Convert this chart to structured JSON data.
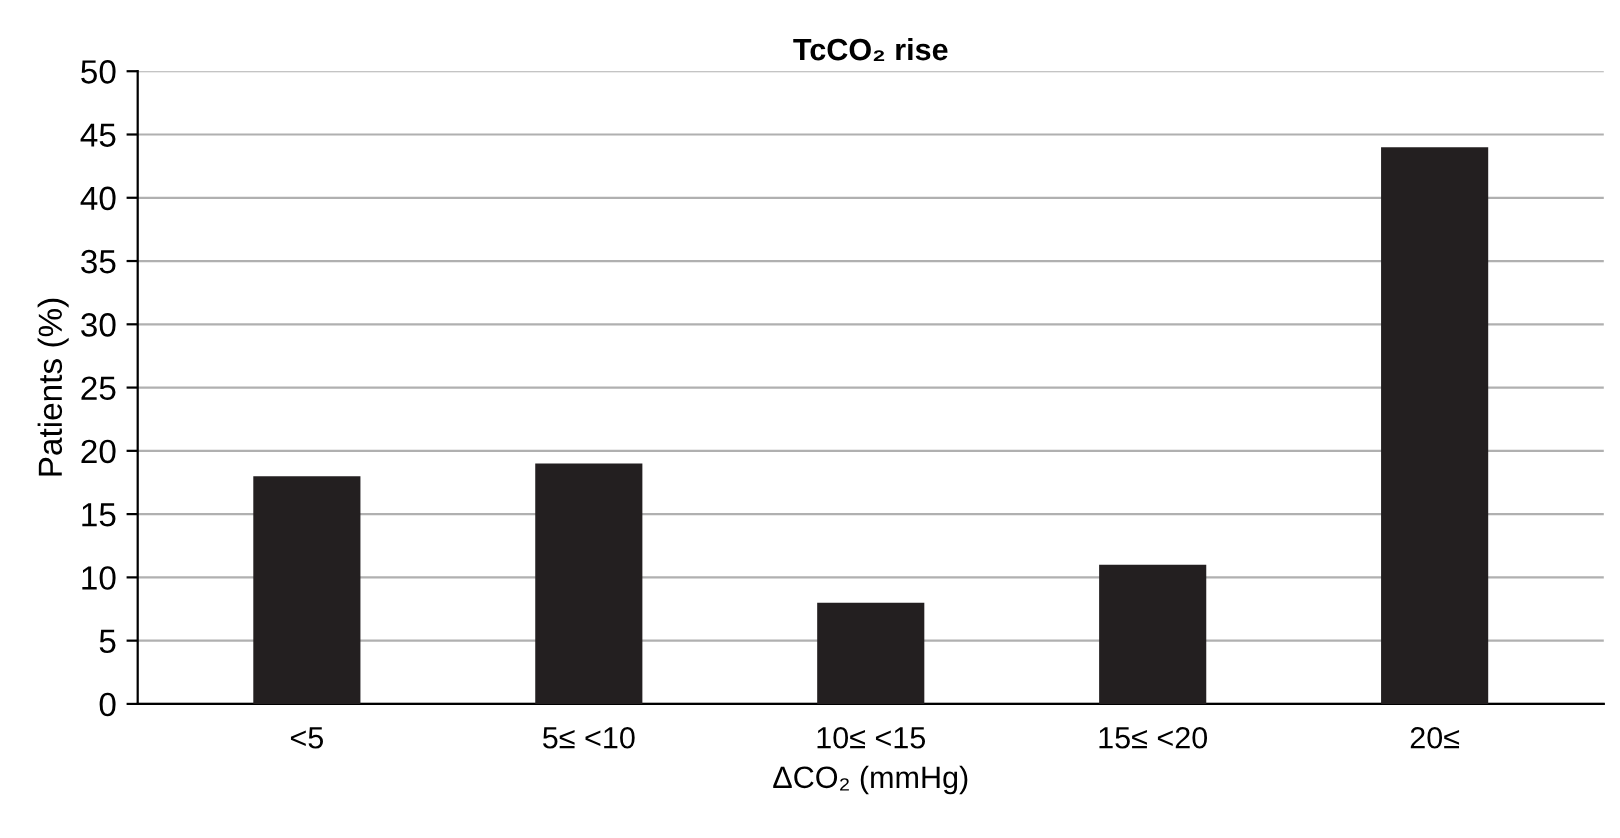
{
  "chart_data": {
    "type": "bar",
    "title": "TcCO₂ rise",
    "xlabel": "ΔCO₂ (mmHg)",
    "ylabel": "Patients (%)",
    "categories": [
      "<5",
      "5≤ <10",
      "10≤ <15",
      "15≤ <20",
      "20≤"
    ],
    "values": [
      18,
      19,
      8,
      11,
      44
    ],
    "color": "#231f20",
    "ylim": [
      0,
      50
    ],
    "yticks": [
      0,
      5,
      10,
      15,
      20,
      25,
      30,
      35,
      40,
      45,
      50
    ],
    "grid": "y"
  }
}
